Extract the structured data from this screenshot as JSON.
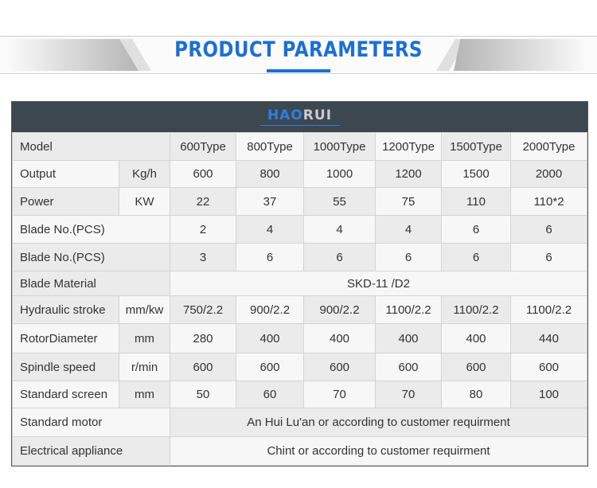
{
  "header": {
    "title": "PRODUCT PARAMETERS",
    "brand_color": "#1c6fd6"
  },
  "logo": {
    "text_a": "HAO",
    "text_b": "RUI"
  },
  "table": {
    "models": [
      "600Type",
      "800Type",
      "1000Type",
      "1200Type",
      "1500Type",
      "2000Type"
    ],
    "model_label": "Model",
    "rows": [
      {
        "label": "Output",
        "unit": "Kg/h",
        "values": [
          "600",
          "800",
          "1000",
          "1200",
          "1500",
          "2000"
        ]
      },
      {
        "label": "Power",
        "unit": "KW",
        "values": [
          "22",
          "37",
          "55",
          "75",
          "110",
          "110*2"
        ]
      },
      {
        "label": "Blade No.(PCS)",
        "unit": "",
        "values": [
          "2",
          "4",
          "4",
          "4",
          "6",
          "6"
        ]
      },
      {
        "label": "Blade No.(PCS)",
        "unit": "",
        "values": [
          "3",
          "6",
          "6",
          "6",
          "6",
          "6"
        ]
      },
      {
        "label": "Blade Material",
        "span": "SKD-11 /D2"
      },
      {
        "label": "Hydraulic stroke",
        "unit": "mm/kw",
        "values": [
          "750/2.2",
          "900/2.2",
          "900/2.2",
          "1100/2.2",
          "1100/2.2",
          "1100/2.2"
        ]
      },
      {
        "label": "RotorDiameter",
        "unit": "mm",
        "values": [
          "280",
          "400",
          "400",
          "400",
          "400",
          "440"
        ]
      },
      {
        "label": "Spindle speed",
        "unit": "r/min",
        "values": [
          "600",
          "600",
          "600",
          "600",
          "600",
          "600"
        ]
      },
      {
        "label": "Standard screen",
        "unit": "mm",
        "values": [
          "50",
          "60",
          "70",
          "70",
          "80",
          "100"
        ]
      },
      {
        "label": "Standard motor",
        "span": "An Hui Lu'an  or according to customer requirment"
      },
      {
        "label": "Electrical appliance",
        "span": "Chint or according to customer requirment"
      }
    ]
  }
}
